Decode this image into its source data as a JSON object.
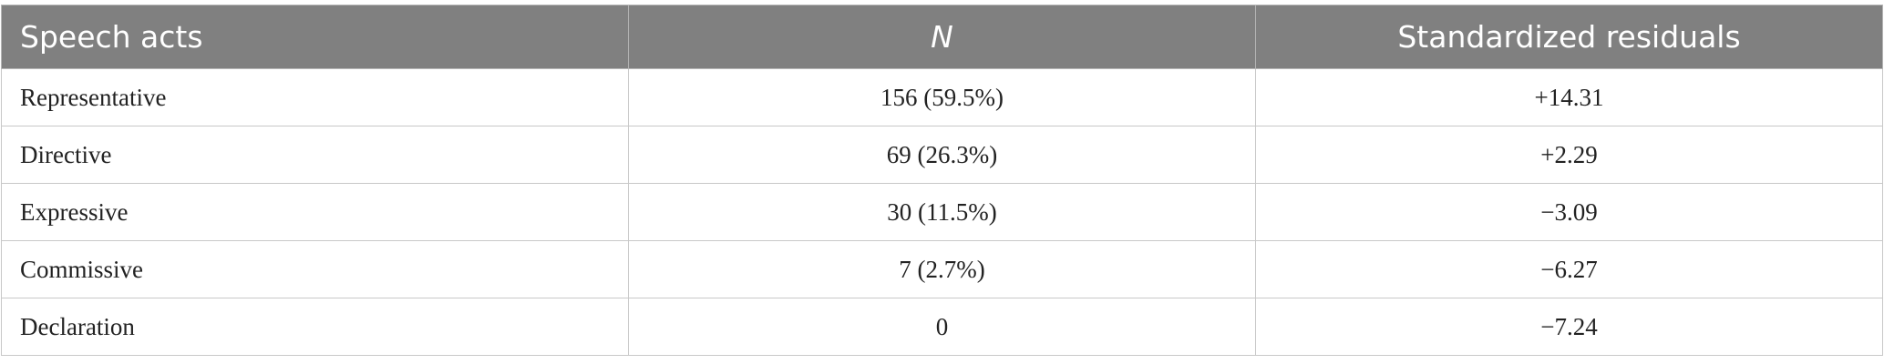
{
  "table": {
    "header": [
      "Speech acts",
      "N",
      "Standardized residuals"
    ],
    "rows": [
      [
        "Representative",
        "156 (59.5%)",
        "+14.31"
      ],
      [
        "Directive",
        "69 (26.3%)",
        "+2.29"
      ],
      [
        "Expressive",
        "30 (11.5%)",
        "−3.09"
      ],
      [
        "Commissive",
        "7 (2.7%)",
        "−6.27"
      ],
      [
        "Declaration",
        "0",
        "−7.24"
      ]
    ]
  }
}
